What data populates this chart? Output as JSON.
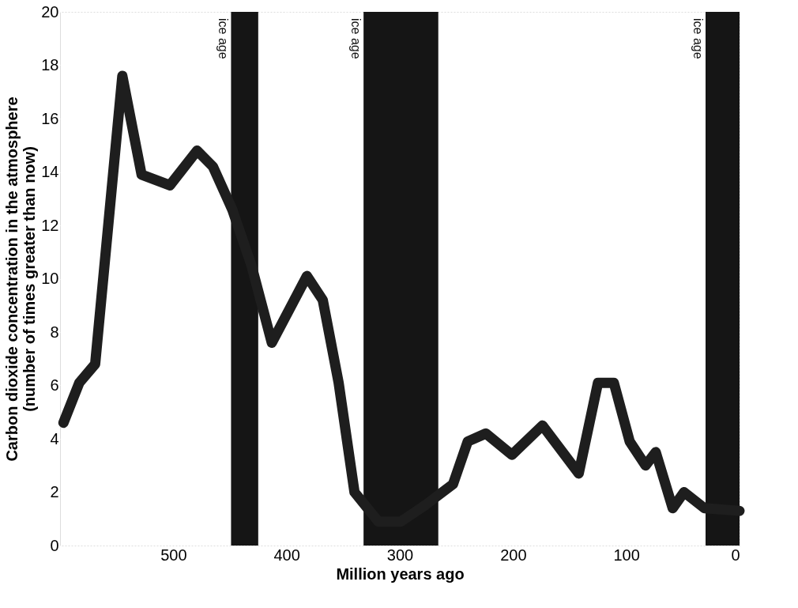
{
  "chart_data": {
    "type": "line",
    "xlabel": "Million years ago",
    "ylabel": "Carbon dioxide concentration in the atmosphere\n(number of times greater than now)",
    "x": [
      597,
      583,
      569,
      545,
      528,
      503,
      479,
      465,
      448,
      431,
      413,
      382,
      368,
      354,
      340,
      319,
      299,
      278,
      253,
      240,
      224,
      201,
      174,
      142,
      125,
      111,
      97,
      83,
      74,
      59,
      49,
      31,
      0
    ],
    "series": [
      {
        "color": "#1e1e1e",
        "values": [
          4.6,
          6.1,
          6.8,
          17.6,
          13.9,
          13.5,
          14.8,
          14.2,
          12.6,
          10.5,
          7.6,
          10.1,
          9.2,
          6.1,
          2.0,
          0.9,
          0.9,
          1.5,
          2.3,
          3.9,
          4.2,
          3.4,
          4.5,
          2.7,
          6.1,
          6.1,
          3.9,
          3.0,
          3.5,
          1.4,
          2.0,
          1.4,
          1.3
        ]
      }
    ],
    "xlim": [
      600,
      0
    ],
    "xticks": [
      500,
      400,
      300,
      200,
      100,
      0
    ],
    "ylim": [
      0,
      20
    ],
    "yticks": [
      0,
      2,
      4,
      6,
      8,
      10,
      12,
      14,
      16,
      18,
      20
    ],
    "grid": true,
    "line_style": "solid",
    "bands": [
      {
        "axis": "x",
        "from": 449,
        "to": 425,
        "label": "ice age",
        "color": "#151515"
      },
      {
        "axis": "x",
        "from": 332,
        "to": 266,
        "label": "ice age",
        "color": "#151515"
      },
      {
        "axis": "x",
        "from": 30,
        "to": 0,
        "label": "ice age",
        "color": "#151515"
      }
    ]
  }
}
